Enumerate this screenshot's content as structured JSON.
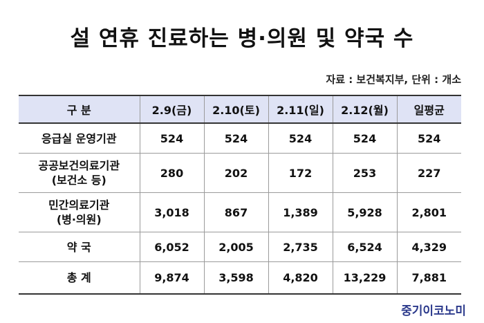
{
  "title": "설 연휴 진료하는 병·의원 및 약국 수",
  "source": "자료 : 보건복지부, 단위 : 개소",
  "table": {
    "headers": [
      "구 분",
      "2.9(금)",
      "2.10(토)",
      "2.11(일)",
      "2.12(월)",
      "일평균"
    ],
    "rows": [
      {
        "category": "응급실 운영기관",
        "category_line2": "",
        "values": [
          "524",
          "524",
          "524",
          "524",
          "524"
        ]
      },
      {
        "category": "공공보건의료기관",
        "category_line2": "(보건소 등)",
        "values": [
          "280",
          "202",
          "172",
          "253",
          "227"
        ]
      },
      {
        "category": "민간의료기관",
        "category_line2": "(병·의원)",
        "values": [
          "3,018",
          "867",
          "1,389",
          "5,928",
          "2,801"
        ]
      },
      {
        "category": "약 국",
        "category_line2": "",
        "values": [
          "6,052",
          "2,005",
          "2,735",
          "6,524",
          "4,329"
        ]
      },
      {
        "category": "총 계",
        "category_line2": "",
        "values": [
          "9,874",
          "3,598",
          "4,820",
          "13,229",
          "7,881"
        ]
      }
    ]
  },
  "brand": "중기이코노미",
  "colors": {
    "header_bg": "#dfe3f5",
    "brand": "#2c3a8c"
  }
}
